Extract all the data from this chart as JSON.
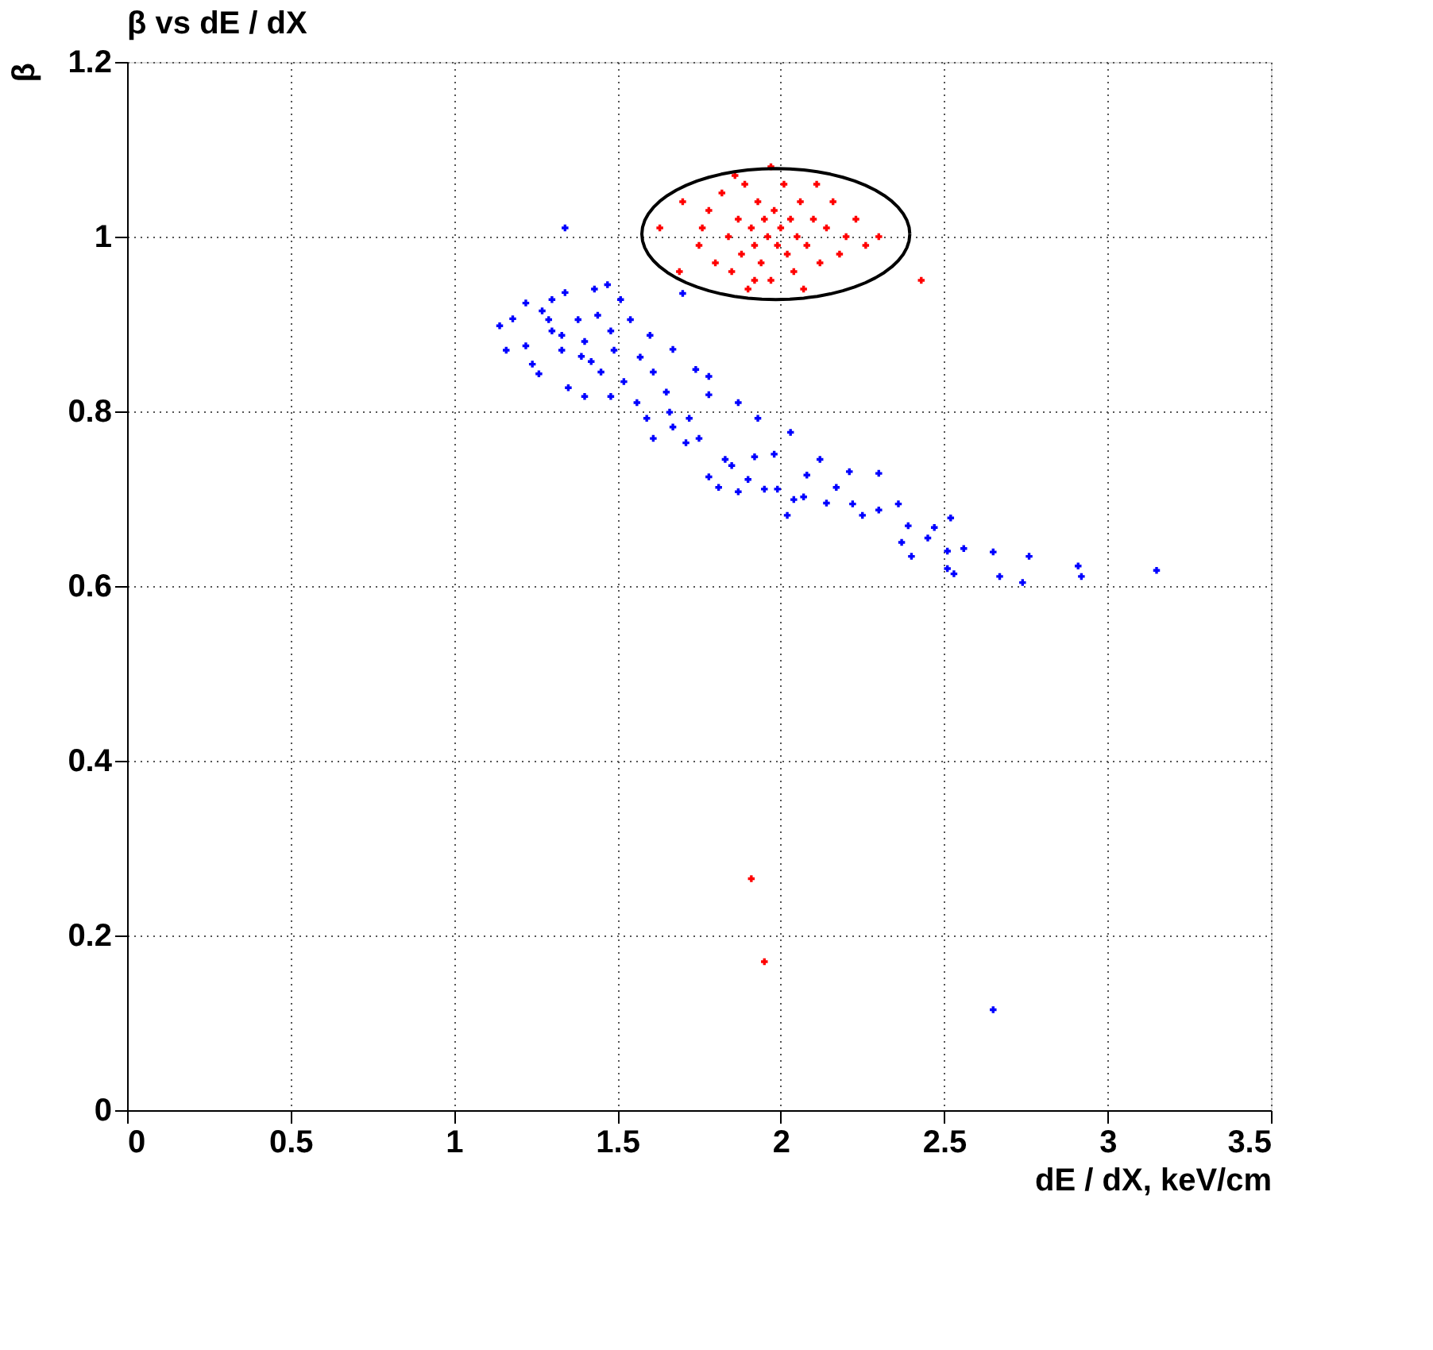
{
  "chart_data": {
    "type": "scatter",
    "title": "β vs dE / dX",
    "xlabel": "dE / dX, keV/cm",
    "ylabel": "β",
    "xlim": [
      0,
      3.5
    ],
    "xticks": [
      0,
      0.5,
      1,
      1.5,
      2,
      2.5,
      3,
      3.5
    ],
    "ylim": [
      0,
      1.2
    ],
    "yticks": [
      0,
      0.2,
      0.4,
      0.6,
      0.8,
      1,
      1.2
    ],
    "grid": true,
    "marker": "cross",
    "series": [
      {
        "color": "#ff0000",
        "x": [
          1.7,
          1.75,
          1.78,
          1.8,
          1.82,
          1.84,
          1.85,
          1.87,
          1.88,
          1.89,
          1.9,
          1.91,
          1.92,
          1.93,
          1.94,
          1.95,
          1.96,
          1.97,
          1.98,
          1.99,
          2.0,
          2.01,
          2.02,
          2.03,
          2.04,
          2.05,
          2.06,
          2.08,
          2.1,
          2.12,
          2.14,
          2.16,
          2.18,
          2.2,
          2.23,
          2.26,
          2.3,
          1.86,
          2.07,
          1.76,
          1.92,
          2.11,
          1.97,
          1.63,
          1.69,
          2.43,
          1.91,
          1.95
        ],
        "values": [
          1.04,
          0.99,
          1.03,
          0.97,
          1.05,
          1.0,
          0.96,
          1.02,
          0.98,
          1.06,
          0.94,
          1.01,
          0.99,
          1.04,
          0.97,
          1.02,
          1.0,
          0.95,
          1.03,
          0.99,
          1.01,
          1.06,
          0.98,
          1.02,
          0.96,
          1.0,
          1.04,
          0.99,
          1.02,
          0.97,
          1.01,
          1.04,
          0.98,
          1.0,
          1.02,
          0.99,
          1.0,
          1.07,
          0.94,
          1.01,
          0.95,
          1.06,
          1.08,
          1.01,
          0.96,
          0.95,
          0.265,
          0.17
        ]
      },
      {
        "color": "#0000ff",
        "x": [
          1.14,
          1.16,
          1.18,
          1.22,
          1.22,
          1.27,
          1.24,
          1.26,
          1.34,
          1.3,
          1.33,
          1.38,
          1.35,
          1.4,
          1.42,
          1.43,
          1.47,
          1.48,
          1.45,
          1.49,
          1.54,
          1.52,
          1.48,
          1.57,
          1.6,
          1.56,
          1.61,
          1.65,
          1.67,
          1.59,
          1.66,
          1.72,
          1.74,
          1.78,
          1.75,
          1.71,
          1.61,
          1.67,
          1.78,
          1.4,
          1.39,
          1.33,
          1.29,
          1.51,
          1.3,
          1.44,
          1.34,
          1.7,
          1.87,
          1.93,
          1.83,
          1.78,
          1.81,
          1.85,
          1.87,
          1.9,
          1.92,
          1.95,
          1.99,
          1.98,
          2.03,
          2.02,
          2.04,
          2.07,
          2.08,
          2.12,
          2.14,
          2.17,
          2.21,
          2.22,
          2.25,
          2.3,
          2.3,
          2.36,
          2.39,
          2.37,
          2.4,
          2.45,
          2.47,
          2.52,
          2.51,
          2.51,
          2.53,
          2.56,
          2.65,
          2.67,
          2.74,
          2.76,
          2.92,
          2.91,
          3.15,
          2.65
        ],
        "values": [
          0.898,
          0.87,
          0.906,
          0.924,
          0.875,
          0.915,
          0.854,
          0.843,
          0.936,
          0.892,
          0.87,
          0.905,
          0.827,
          0.817,
          0.857,
          0.94,
          0.945,
          0.892,
          0.845,
          0.87,
          0.905,
          0.834,
          0.817,
          0.862,
          0.887,
          0.81,
          0.845,
          0.822,
          0.871,
          0.792,
          0.799,
          0.792,
          0.848,
          0.84,
          0.769,
          0.764,
          0.769,
          0.782,
          0.819,
          0.88,
          0.863,
          0.887,
          0.905,
          0.928,
          0.928,
          0.91,
          1.01,
          0.935,
          0.81,
          0.792,
          0.745,
          0.725,
          0.713,
          0.738,
          0.708,
          0.722,
          0.748,
          0.711,
          0.711,
          0.751,
          0.776,
          0.681,
          0.699,
          0.702,
          0.727,
          0.745,
          0.695,
          0.713,
          0.731,
          0.694,
          0.681,
          0.729,
          0.687,
          0.694,
          0.669,
          0.65,
          0.634,
          0.655,
          0.667,
          0.678,
          0.64,
          0.62,
          0.614,
          0.643,
          0.639,
          0.611,
          0.604,
          0.634,
          0.611,
          0.623,
          0.618,
          0.115
        ]
      }
    ]
  }
}
